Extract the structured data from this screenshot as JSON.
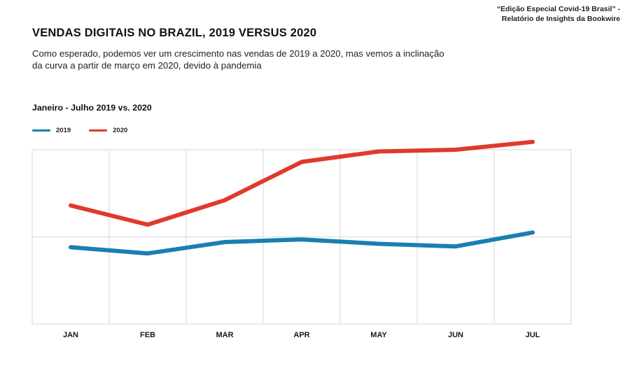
{
  "source": {
    "line1": "“Edição Especial Covid-19 Brasil” -",
    "line2": "Relatório de Insights da Bookwire"
  },
  "title": "VENDAS DIGITAIS NO BRAZIL, 2019 VERSUS 2020",
  "subtitle": "Como esperado, podemos ver um crescimento nas vendas de 2019 a 2020, mas vemos a inclinação da curva a partir de março em 2020, devido à pandemia",
  "period": "Janeiro - Julho 2019 vs. 2020",
  "colors": {
    "s2019": "#1a7fb0",
    "s2020": "#e03a2d",
    "grid": "#e3e3e3"
  },
  "chart_data": {
    "type": "line",
    "categories": [
      "JAN",
      "FEB",
      "MAR",
      "APR",
      "MAY",
      "JUN",
      "JUL"
    ],
    "series": [
      {
        "name": "2019",
        "values": [
          0.88,
          0.81,
          0.94,
          0.97,
          0.92,
          0.89,
          1.05
        ]
      },
      {
        "name": "2020",
        "values": [
          1.36,
          1.14,
          1.42,
          1.86,
          1.98,
          2.0,
          2.09
        ]
      }
    ],
    "ylim": [
      0,
      2.0
    ],
    "ylabel": "",
    "xlabel": "",
    "grid": true,
    "y_tick_labels_shown": false,
    "legend": "top-left"
  }
}
